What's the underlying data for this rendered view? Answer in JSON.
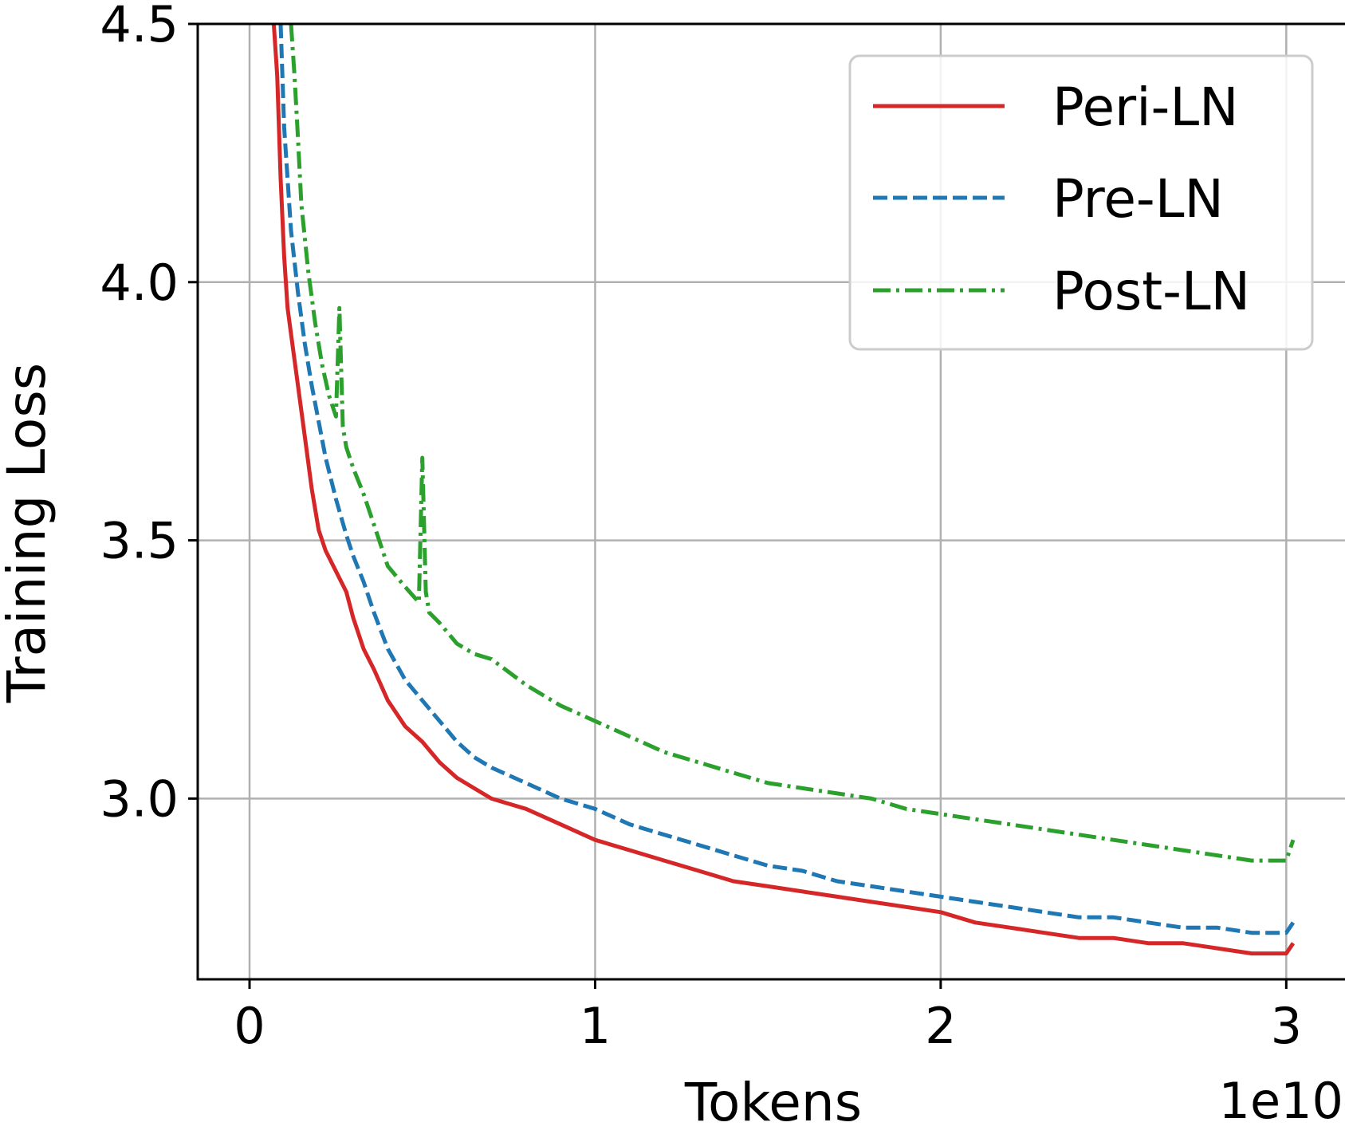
{
  "chart_data": {
    "type": "line",
    "xlabel": "Tokens",
    "ylabel": "Training Loss",
    "x_offset_label": "1e10",
    "xlim": [
      -0.15,
      3.17
    ],
    "ylim": [
      2.65,
      4.5
    ],
    "x_ticks": [
      0,
      1,
      2,
      3
    ],
    "x_tick_labels": [
      "0",
      "1",
      "2",
      "3"
    ],
    "y_ticks": [
      3.0,
      3.5,
      4.0,
      4.5
    ],
    "y_tick_labels": [
      "3.0",
      "3.5",
      "4.0",
      "4.5"
    ],
    "grid": true,
    "legend_position": "top-right",
    "series": [
      {
        "name": "Peri-LN",
        "color": "#d62728",
        "style": "solid",
        "x": [
          0.07,
          0.08,
          0.09,
          0.1,
          0.11,
          0.12,
          0.14,
          0.16,
          0.18,
          0.2,
          0.22,
          0.25,
          0.28,
          0.3,
          0.33,
          0.36,
          0.4,
          0.45,
          0.5,
          0.55,
          0.6,
          0.65,
          0.7,
          0.8,
          0.9,
          1.0,
          1.1,
          1.2,
          1.3,
          1.4,
          1.5,
          1.6,
          1.7,
          1.8,
          1.9,
          2.0,
          2.1,
          2.2,
          2.3,
          2.4,
          2.5,
          2.6,
          2.7,
          2.8,
          2.9,
          3.0,
          3.02
        ],
        "y": [
          4.5,
          4.4,
          4.2,
          4.05,
          3.95,
          3.9,
          3.8,
          3.7,
          3.6,
          3.52,
          3.48,
          3.44,
          3.4,
          3.35,
          3.29,
          3.25,
          3.19,
          3.14,
          3.11,
          3.07,
          3.04,
          3.02,
          3.0,
          2.98,
          2.95,
          2.92,
          2.9,
          2.88,
          2.86,
          2.84,
          2.83,
          2.82,
          2.81,
          2.8,
          2.79,
          2.78,
          2.76,
          2.75,
          2.74,
          2.73,
          2.73,
          2.72,
          2.72,
          2.71,
          2.7,
          2.7,
          2.72
        ]
      },
      {
        "name": "Pre-LN",
        "color": "#1f77b4",
        "style": "dashed",
        "x": [
          0.09,
          0.1,
          0.11,
          0.12,
          0.14,
          0.16,
          0.18,
          0.2,
          0.22,
          0.25,
          0.28,
          0.3,
          0.33,
          0.36,
          0.4,
          0.45,
          0.5,
          0.55,
          0.6,
          0.65,
          0.7,
          0.8,
          0.9,
          1.0,
          1.1,
          1.2,
          1.3,
          1.4,
          1.5,
          1.6,
          1.7,
          1.8,
          1.9,
          2.0,
          2.1,
          2.2,
          2.3,
          2.4,
          2.5,
          2.6,
          2.7,
          2.8,
          2.9,
          3.0,
          3.02
        ],
        "y": [
          4.5,
          4.3,
          4.2,
          4.1,
          3.98,
          3.88,
          3.8,
          3.73,
          3.66,
          3.58,
          3.51,
          3.47,
          3.42,
          3.36,
          3.29,
          3.23,
          3.19,
          3.15,
          3.11,
          3.08,
          3.06,
          3.03,
          3.0,
          2.98,
          2.95,
          2.93,
          2.91,
          2.89,
          2.87,
          2.86,
          2.84,
          2.83,
          2.82,
          2.81,
          2.8,
          2.79,
          2.78,
          2.77,
          2.77,
          2.76,
          2.75,
          2.75,
          2.74,
          2.74,
          2.76
        ]
      },
      {
        "name": "Post-LN",
        "color": "#2ca02c",
        "style": "dashdot",
        "x": [
          0.12,
          0.13,
          0.14,
          0.15,
          0.17,
          0.19,
          0.21,
          0.23,
          0.25,
          0.26,
          0.27,
          0.28,
          0.3,
          0.33,
          0.36,
          0.4,
          0.45,
          0.49,
          0.5,
          0.51,
          0.52,
          0.55,
          0.6,
          0.65,
          0.7,
          0.8,
          0.9,
          1.0,
          1.1,
          1.2,
          1.3,
          1.4,
          1.5,
          1.6,
          1.7,
          1.8,
          1.9,
          2.0,
          2.1,
          2.2,
          2.3,
          2.4,
          2.5,
          2.6,
          2.7,
          2.8,
          2.9,
          3.0,
          3.02
        ],
        "y": [
          4.5,
          4.4,
          4.28,
          4.15,
          4.02,
          3.92,
          3.84,
          3.78,
          3.74,
          3.95,
          3.72,
          3.68,
          3.64,
          3.59,
          3.53,
          3.45,
          3.41,
          3.38,
          3.66,
          3.4,
          3.36,
          3.34,
          3.3,
          3.28,
          3.27,
          3.22,
          3.18,
          3.15,
          3.12,
          3.09,
          3.07,
          3.05,
          3.03,
          3.02,
          3.01,
          3.0,
          2.98,
          2.97,
          2.96,
          2.95,
          2.94,
          2.93,
          2.92,
          2.91,
          2.9,
          2.89,
          2.88,
          2.88,
          2.92
        ]
      }
    ]
  }
}
